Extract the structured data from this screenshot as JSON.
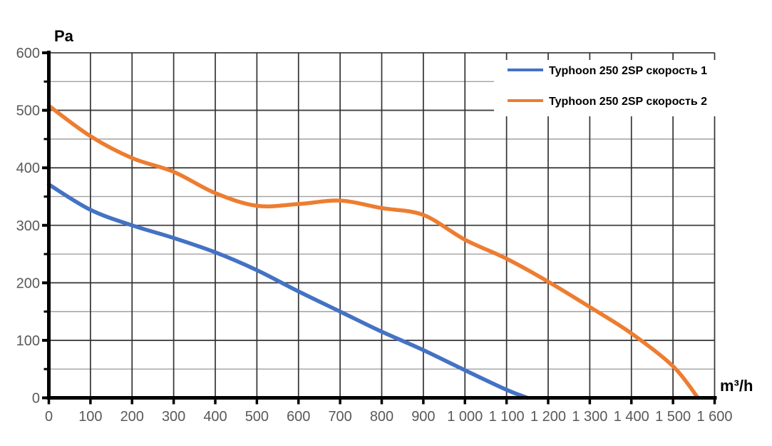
{
  "chart_data": {
    "type": "line",
    "title": "",
    "xlabel": "m³/h",
    "ylabel": "Pa",
    "xlim": [
      0,
      1600
    ],
    "ylim": [
      0,
      600
    ],
    "x_tick_step": 100,
    "y_tick_step_major": 100,
    "y_tick_step_minor": 50,
    "grid": {
      "on": true,
      "vertical_color": "#333333",
      "major_horizontal_color": "#404040",
      "minor_horizontal_color": "#A0A0A0"
    },
    "axis_color": "#000000",
    "tick_label_color": "#595959",
    "legend_position": "top-right",
    "x_tick_labels": [
      "0",
      "100",
      "200",
      "300",
      "400",
      "500",
      "600",
      "700",
      "800",
      "900",
      "1 000",
      "1 100",
      "1 200",
      "1 300",
      "1 400",
      "1 500",
      "1 600"
    ],
    "y_tick_labels": [
      "0",
      "100",
      "200",
      "300",
      "400",
      "500",
      "600"
    ],
    "series": [
      {
        "name": "Typhoon 250 2SP скорость 1",
        "color": "#4472C4",
        "points": [
          [
            0,
            371
          ],
          [
            100,
            327
          ],
          [
            200,
            300
          ],
          [
            300,
            278
          ],
          [
            400,
            253
          ],
          [
            500,
            222
          ],
          [
            600,
            185
          ],
          [
            700,
            150
          ],
          [
            800,
            115
          ],
          [
            900,
            83
          ],
          [
            1000,
            48
          ],
          [
            1100,
            14
          ],
          [
            1150,
            0
          ]
        ]
      },
      {
        "name": "Typhoon 250 2SP скорость 2",
        "color": "#ED7D31",
        "points": [
          [
            0,
            508
          ],
          [
            100,
            455
          ],
          [
            200,
            417
          ],
          [
            300,
            393
          ],
          [
            400,
            356
          ],
          [
            500,
            334
          ],
          [
            600,
            337
          ],
          [
            700,
            343
          ],
          [
            800,
            330
          ],
          [
            900,
            318
          ],
          [
            1000,
            275
          ],
          [
            1100,
            242
          ],
          [
            1200,
            202
          ],
          [
            1300,
            158
          ],
          [
            1400,
            112
          ],
          [
            1500,
            55
          ],
          [
            1560,
            0
          ]
        ]
      }
    ]
  }
}
